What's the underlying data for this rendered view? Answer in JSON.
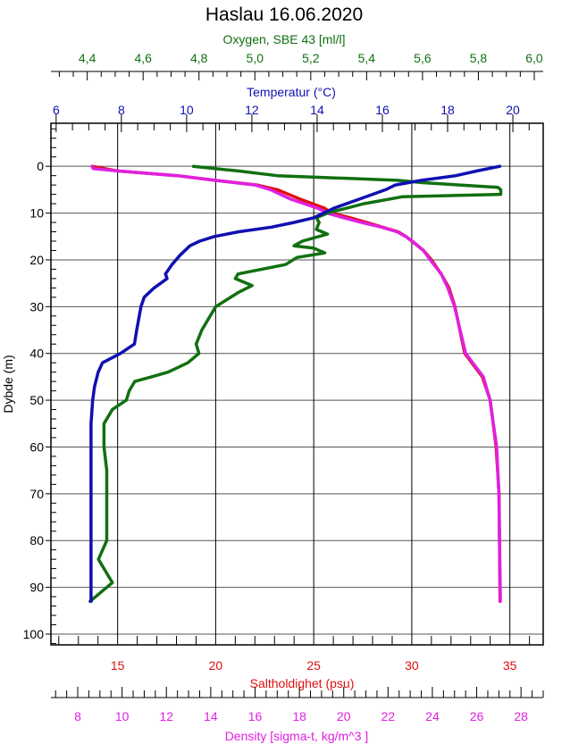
{
  "chart_data": {
    "type": "line",
    "title": "Haslau 16.06.2020",
    "ylabel": "Dybde (m)",
    "ylim": [
      102.3,
      -9.2
    ],
    "yticks": [
      0,
      10,
      20,
      30,
      40,
      50,
      60,
      70,
      80,
      90,
      100
    ],
    "grid": true,
    "colors": {
      "oxygen": "#107010",
      "temperature": "#1010b0",
      "salinity": "#e01010",
      "density": "#e020e0",
      "axis": "#000000",
      "grid": "#000000"
    },
    "axes": {
      "oxygen": {
        "label": "Oxygen, SBE 43 [ml/l]",
        "position": "top",
        "range": [
          4.27,
          6.032
        ],
        "ticks": [
          "4,4",
          "4,6",
          "4,8",
          "5,0",
          "5,2",
          "5,4",
          "5,6",
          "5,8",
          "6,0"
        ],
        "tick_values": [
          4.4,
          4.6,
          4.8,
          5.0,
          5.2,
          5.4,
          5.6,
          5.8,
          6.0
        ],
        "minor": 0.05
      },
      "temperature": {
        "label": "Temperatur (°C)",
        "position": "top",
        "range": [
          5.84,
          20.93
        ],
        "ticks": [
          "6",
          "8",
          "10",
          "12",
          "14",
          "16",
          "18",
          "20"
        ],
        "tick_values": [
          6,
          8,
          10,
          12,
          14,
          16,
          18,
          20
        ],
        "minor": 0.5
      },
      "salinity": {
        "label": "Saltholdighet (psu)",
        "position": "bottom",
        "range": [
          11.6,
          36.7
        ],
        "ticks": [
          "15",
          "20",
          "25",
          "30",
          "35"
        ],
        "tick_values": [
          15,
          20,
          25,
          30,
          35
        ],
        "minor": 1
      },
      "density": {
        "label": "Density [sigma-t, kg/m^3 ]",
        "position": "bottom",
        "range": [
          6.79,
          29.0
        ],
        "ticks": [
          "8",
          "10",
          "12",
          "14",
          "16",
          "18",
          "20",
          "22",
          "24",
          "26",
          "28"
        ],
        "tick_values": [
          8,
          10,
          12,
          14,
          16,
          18,
          20,
          22,
          24,
          26,
          28
        ],
        "minor": 0.5
      }
    },
    "series": [
      {
        "name": "Salinity",
        "axis": "salinity",
        "depth": [
          0,
          1,
          2,
          3,
          4,
          5,
          7,
          9,
          10,
          11,
          12,
          13,
          14,
          15,
          16,
          18,
          20,
          23,
          26,
          30,
          40,
          45,
          50,
          60,
          70,
          93
        ],
        "values": [
          13.7,
          15.0,
          18.05,
          19.97,
          22.1,
          23.15,
          24.3,
          25.57,
          25.9,
          26.85,
          27.7,
          28.5,
          29.3,
          29.7,
          30.0,
          30.6,
          31.0,
          31.5,
          31.9,
          32.2,
          32.7,
          33.6,
          34.0,
          34.3,
          34.45,
          34.5
        ]
      },
      {
        "name": "Density",
        "axis": "density",
        "depth": [
          0,
          0.5,
          1,
          2,
          3,
          4,
          5,
          7,
          9,
          10,
          11,
          12,
          13,
          14,
          15,
          16,
          18,
          20,
          23,
          26,
          30,
          40,
          45,
          50,
          60,
          70,
          93
        ],
        "values": [
          8.65,
          8.7,
          9.8,
          12.5,
          14.2,
          16.0,
          16.7,
          17.6,
          18.85,
          19.25,
          20.0,
          20.8,
          21.7,
          22.4,
          22.8,
          23.1,
          23.6,
          23.9,
          24.4,
          24.7,
          25.0,
          25.5,
          26.3,
          26.6,
          26.9,
          27.0,
          27.07
        ]
      },
      {
        "name": "Oxygen",
        "axis": "oxygen",
        "depth": [
          0,
          1,
          2,
          3,
          3.5,
          4.5,
          5,
          6,
          6.5,
          8,
          10,
          11,
          12,
          13.5,
          14.5,
          16,
          17,
          17.5,
          18.5,
          19.5,
          21,
          23,
          24,
          25.5,
          27,
          30,
          35,
          38,
          40,
          42,
          44,
          45,
          46,
          48,
          50,
          52,
          55,
          60,
          65,
          70,
          80,
          84,
          87,
          89,
          91,
          93
        ],
        "values": [
          4.78,
          4.94,
          5.08,
          5.51,
          5.6,
          5.87,
          5.88,
          5.88,
          5.53,
          5.39,
          5.26,
          5.22,
          5.23,
          5.22,
          5.26,
          5.17,
          5.14,
          5.21,
          5.25,
          5.15,
          5.11,
          4.94,
          4.93,
          4.99,
          4.94,
          4.86,
          4.81,
          4.79,
          4.8,
          4.76,
          4.69,
          4.63,
          4.57,
          4.55,
          4.54,
          4.49,
          4.46,
          4.46,
          4.47,
          4.47,
          4.47,
          4.44,
          4.47,
          4.49,
          4.45,
          4.41
        ]
      },
      {
        "name": "Temperature",
        "axis": "temperature",
        "depth": [
          0,
          1,
          2,
          3,
          4,
          5,
          7,
          9,
          11,
          12,
          13,
          14,
          15,
          16,
          17,
          19,
          21,
          23,
          24,
          26,
          28,
          30,
          35,
          38,
          40,
          42,
          44,
          47,
          50,
          55,
          93
        ],
        "values": [
          19.6,
          18.9,
          18.25,
          17.2,
          16.4,
          16.1,
          15.3,
          14.5,
          13.9,
          13.3,
          12.6,
          11.6,
          10.85,
          10.4,
          10.1,
          9.8,
          9.55,
          9.35,
          9.4,
          9.0,
          8.7,
          8.6,
          8.47,
          8.4,
          7.97,
          7.42,
          7.29,
          7.18,
          7.12,
          7.07,
          7.07
        ]
      }
    ]
  }
}
